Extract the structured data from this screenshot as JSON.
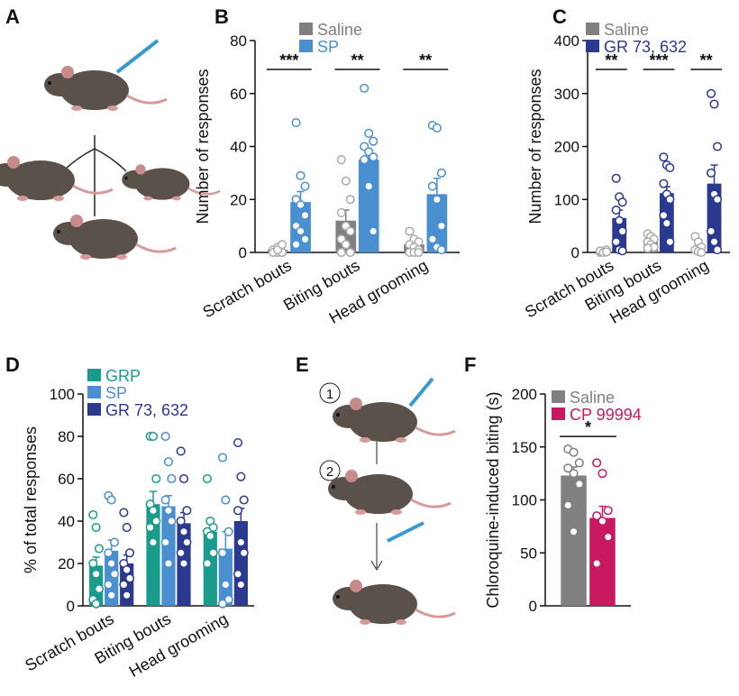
{
  "chart_data": [
    {
      "type": "bar",
      "panel": "B",
      "ylabel": "Number of responses",
      "categories": [
        "Scratch bouts",
        "Biting bouts",
        "Head grooming"
      ],
      "ylim": [
        0,
        80
      ],
      "yticks": [
        0,
        20,
        40,
        60,
        80
      ],
      "annotations": [
        "***",
        "**",
        "**"
      ],
      "series": [
        {
          "name": "Saline",
          "color": "#808080",
          "point_color": "#aaaaaa",
          "values": [
            1,
            12,
            3
          ],
          "errors": [
            0.5,
            4,
            1
          ],
          "points": [
            [
              0,
              0,
              0,
              1,
              2,
              0,
              0,
              1,
              3
            ],
            [
              35,
              27,
              20,
              15,
              10,
              8,
              5,
              3,
              0,
              0
            ],
            [
              8,
              5,
              4,
              3,
              2,
              1,
              0,
              0,
              0
            ]
          ]
        },
        {
          "name": "SP",
          "color": "#4a90d0",
          "point_color": "#4a90d0",
          "values": [
            19,
            35,
            22
          ],
          "errors": [
            4,
            3,
            6
          ],
          "points": [
            [
              49,
              29,
              25,
              20,
              18,
              14,
              10,
              8,
              5,
              3
            ],
            [
              62,
              45,
              42,
              40,
              38,
              36,
              35,
              25,
              8
            ],
            [
              48,
              47,
              30,
              25,
              20,
              10,
              5,
              2,
              1
            ]
          ]
        }
      ]
    },
    {
      "type": "bar",
      "panel": "C",
      "ylabel": "Number of responses",
      "categories": [
        "Scratch bouts",
        "Biting bouts",
        "Head grooming"
      ],
      "ylim": [
        0,
        400
      ],
      "yticks": [
        0,
        100,
        200,
        300,
        400
      ],
      "annotations": [
        "**",
        "***",
        "**"
      ],
      "series": [
        {
          "name": "Saline",
          "color": "#808080",
          "point_color": "#aaaaaa",
          "values": [
            3,
            20,
            5
          ],
          "errors": [
            1,
            4,
            3
          ],
          "points": [
            [
              0,
              2,
              5,
              3,
              0,
              1
            ],
            [
              35,
              30,
              25,
              20,
              15,
              10,
              8
            ],
            [
              30,
              20,
              10,
              5,
              2,
              0
            ]
          ]
        },
        {
          "name": "GR 73, 632",
          "color": "#2b3990",
          "point_color": "#2b3990",
          "values": [
            65,
            112,
            130
          ],
          "errors": [
            15,
            12,
            35
          ],
          "points": [
            [
              140,
              105,
              95,
              80,
              60,
              40,
              20,
              5,
              3
            ],
            [
              180,
              165,
              160,
              130,
              110,
              100,
              70,
              55,
              20
            ],
            [
              300,
              280,
              200,
              150,
              110,
              100,
              40,
              20,
              5
            ]
          ]
        }
      ]
    },
    {
      "type": "bar",
      "panel": "D",
      "ylabel": "% of total responses",
      "categories": [
        "Scratch bouts",
        "Biting bouts",
        "Head grooming"
      ],
      "ylim": [
        0,
        100
      ],
      "yticks": [
        0,
        20,
        40,
        60,
        80,
        100
      ],
      "series": [
        {
          "name": "GRP",
          "color": "#1a9c8c",
          "point_color": "#1a9c8c",
          "values": [
            19,
            48,
            35
          ],
          "errors": [
            4,
            6,
            4
          ],
          "points": [
            [
              43,
              37,
              27,
              20,
              15,
              8,
              3,
              1
            ],
            [
              80,
              80,
              60,
              48,
              45,
              40,
              37,
              30
            ],
            [
              60,
              40,
              37,
              35,
              33,
              25,
              20
            ]
          ]
        },
        {
          "name": "SP",
          "color": "#4a90d0",
          "point_color": "#4a90d0",
          "values": [
            26,
            47,
            27
          ],
          "errors": [
            5,
            5,
            8
          ],
          "points": [
            [
              52,
              50,
              30,
              25,
              20,
              15,
              10,
              5
            ],
            [
              80,
              68,
              60,
              50,
              45,
              40,
              30,
              20
            ],
            [
              70,
              50,
              35,
              25,
              10,
              3,
              1
            ]
          ]
        },
        {
          "name": "GR 73, 632",
          "color": "#2b3990",
          "point_color": "#2b3990",
          "values": [
            20,
            39,
            40
          ],
          "errors": [
            4,
            5,
            6
          ],
          "points": [
            [
              44,
              37,
              25,
              20,
              17,
              13,
              10,
              5
            ],
            [
              73,
              60,
              45,
              40,
              35,
              30,
              25,
              20
            ],
            [
              77,
              61,
              50,
              45,
              30,
              25,
              15,
              10
            ]
          ]
        }
      ]
    },
    {
      "type": "bar",
      "panel": "F",
      "ylabel": "Chloroquine-induced biting (s)",
      "categories": [
        null
      ],
      "ylim": [
        0,
        200
      ],
      "yticks": [
        0,
        50,
        100,
        150,
        200
      ],
      "annotations": [
        "*"
      ],
      "series": [
        {
          "name": "Saline",
          "color": "#808080",
          "point_color": "#808080",
          "values": [
            123
          ],
          "errors": [
            8
          ],
          "points": [
            [
              148,
              145,
              135,
              130,
              125,
              115,
              95,
              70
            ]
          ]
        },
        {
          "name": "CP 99994",
          "color": "#c8185f",
          "point_color": "#c8185f",
          "values": [
            83
          ],
          "errors": [
            11
          ],
          "points": [
            [
              135,
              125,
              90,
              85,
              80,
              65,
              40
            ]
          ]
        }
      ]
    }
  ],
  "illustrations": [
    {
      "panel": "A"
    },
    {
      "panel": "E",
      "steps": [
        "1",
        "2"
      ]
    }
  ]
}
